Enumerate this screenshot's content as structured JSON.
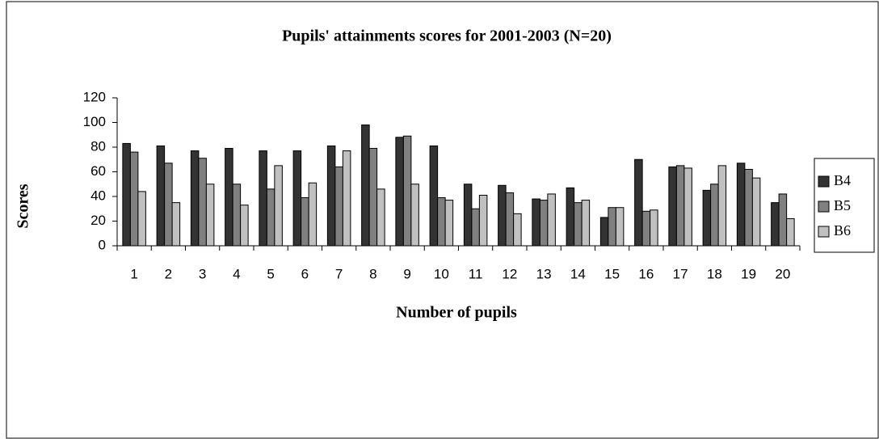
{
  "chart_data": {
    "type": "bar",
    "title": "Pupils' attainments scores for 2001-2003 (N=20)",
    "x_label": "Number of pupils",
    "y_label": "Scores",
    "categories": [
      "1",
      "2",
      "3",
      "4",
      "5",
      "6",
      "7",
      "8",
      "9",
      "10",
      "11",
      "12",
      "13",
      "14",
      "15",
      "16",
      "17",
      "18",
      "19",
      "20"
    ],
    "series": [
      {
        "name": "B4",
        "color": "#333333",
        "values": [
          83,
          81,
          77,
          79,
          77,
          77,
          81,
          98,
          88,
          81,
          50,
          49,
          38,
          47,
          23,
          70,
          64,
          45,
          67,
          35
        ]
      },
      {
        "name": "B5",
        "color": "#808080",
        "values": [
          76,
          67,
          71,
          50,
          46,
          39,
          64,
          79,
          89,
          39,
          30,
          43,
          37,
          35,
          31,
          28,
          65,
          50,
          62,
          42
        ]
      },
      {
        "name": "B6",
        "color": "#c0c0c0",
        "values": [
          44,
          35,
          50,
          33,
          65,
          51,
          77,
          46,
          50,
          37,
          41,
          26,
          42,
          37,
          31,
          29,
          63,
          65,
          55,
          22
        ]
      }
    ],
    "ylim": [
      0,
      120
    ],
    "yticks": [
      0,
      20,
      40,
      60,
      80,
      100,
      120
    ],
    "legend": "right"
  }
}
